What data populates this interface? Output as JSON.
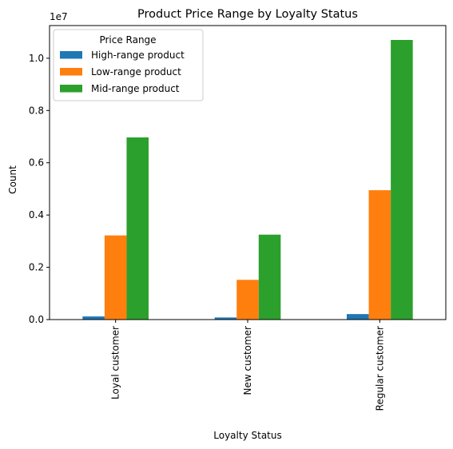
{
  "chart_data": {
    "type": "bar",
    "title": "Product Price Range by Loyalty Status",
    "xlabel": "Loyalty Status",
    "ylabel": "Count",
    "y_offset_text": "1e7",
    "y_scale": 10000000,
    "ylim": [
      0,
      11250000
    ],
    "y_ticks": [
      0,
      2000000,
      4000000,
      6000000,
      8000000,
      10000000
    ],
    "y_tick_labels": [
      "0.0",
      "0.2",
      "0.4",
      "0.6",
      "0.8",
      "1.0"
    ],
    "categories": [
      "Loyal customer",
      "New customer",
      "Regular customer"
    ],
    "legend": {
      "title": "Price Range",
      "position": "top-left"
    },
    "grid": false,
    "series": [
      {
        "name": "High-range product",
        "color": "#1f77b4",
        "values": [
          120000,
          80000,
          210000
        ]
      },
      {
        "name": "Low-range product",
        "color": "#ff7f0e",
        "values": [
          3220000,
          1520000,
          4950000
        ]
      },
      {
        "name": "Mid-range product",
        "color": "#2ca02c",
        "values": [
          6970000,
          3250000,
          10700000
        ]
      }
    ]
  }
}
